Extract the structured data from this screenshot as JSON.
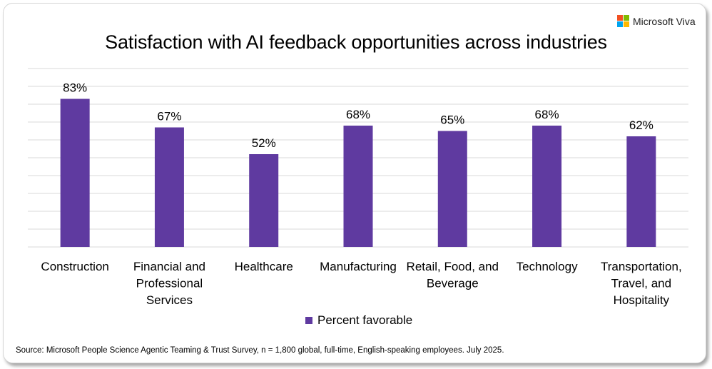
{
  "brand": {
    "name": "Microsoft Viva",
    "logo_colors": [
      "#f25022",
      "#7fba00",
      "#00a4ef",
      "#ffb900"
    ]
  },
  "chart_data": {
    "type": "bar",
    "title": "Satisfaction with AI feedback opportunities across industries",
    "categories": [
      "Construction",
      "Financial and Professional Services",
      "Healthcare",
      "Manufacturing",
      "Retail, Food, and Beverage",
      "Technology",
      "Transportation, Travel, and Hospitality"
    ],
    "category_lines": [
      [
        "Construction"
      ],
      [
        "Financial and",
        "Professional",
        "Services"
      ],
      [
        "Healthcare"
      ],
      [
        "Manufacturing"
      ],
      [
        "Retail, Food, and",
        "Beverage"
      ],
      [
        "Technology"
      ],
      [
        "Transportation,",
        "Travel, and",
        "Hospitality"
      ]
    ],
    "series": [
      {
        "name": "Percent favorable",
        "values": [
          83,
          67,
          52,
          68,
          65,
          68,
          62
        ],
        "color": "#5f3aa0"
      }
    ],
    "data_labels": [
      "83%",
      "67%",
      "52%",
      "68%",
      "65%",
      "68%",
      "62%"
    ],
    "ylim": [
      0,
      100
    ],
    "grid": true,
    "grid_step": 10,
    "y_axis_labels_visible": false,
    "legend_position": "bottom",
    "xlabel": "",
    "ylabel": ""
  },
  "source": "Source: Microsoft People Science Agentic Teaming & Trust Survey, n = 1,800 global, full-time, English-speaking employees. July 2025."
}
